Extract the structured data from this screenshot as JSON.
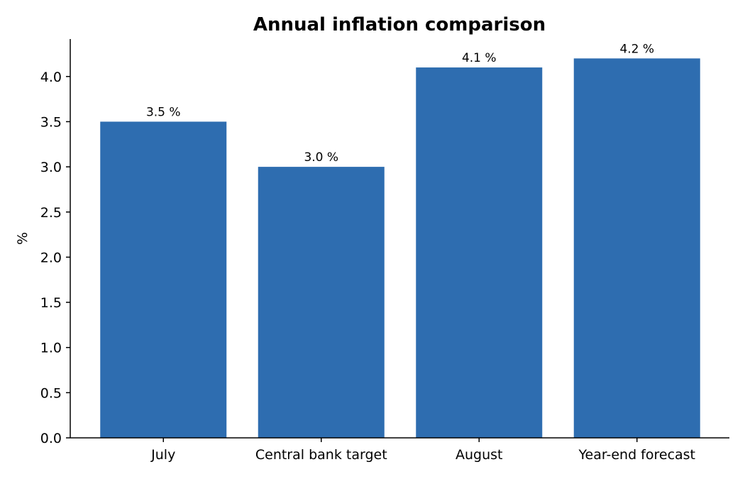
{
  "chart_data": {
    "type": "bar",
    "title": "Annual inflation comparison",
    "xlabel": "",
    "ylabel": "%",
    "categories": [
      "July",
      "Central bank target",
      "August",
      "Year-end forecast"
    ],
    "values": [
      3.5,
      3.0,
      4.1,
      4.2
    ],
    "data_labels": [
      "3.5 %",
      "3.0 %",
      "4.1 %",
      "4.2 %"
    ],
    "ylim": [
      0,
      4.4
    ],
    "yticks": [
      0.0,
      0.5,
      1.0,
      1.5,
      2.0,
      2.5,
      3.0,
      3.5,
      4.0
    ],
    "ytick_labels": [
      "0.0",
      "0.5",
      "1.0",
      "1.5",
      "2.0",
      "2.5",
      "3.0",
      "3.5",
      "4.0"
    ],
    "bar_color": "#2e6db0",
    "grid": false,
    "legend": "none"
  }
}
